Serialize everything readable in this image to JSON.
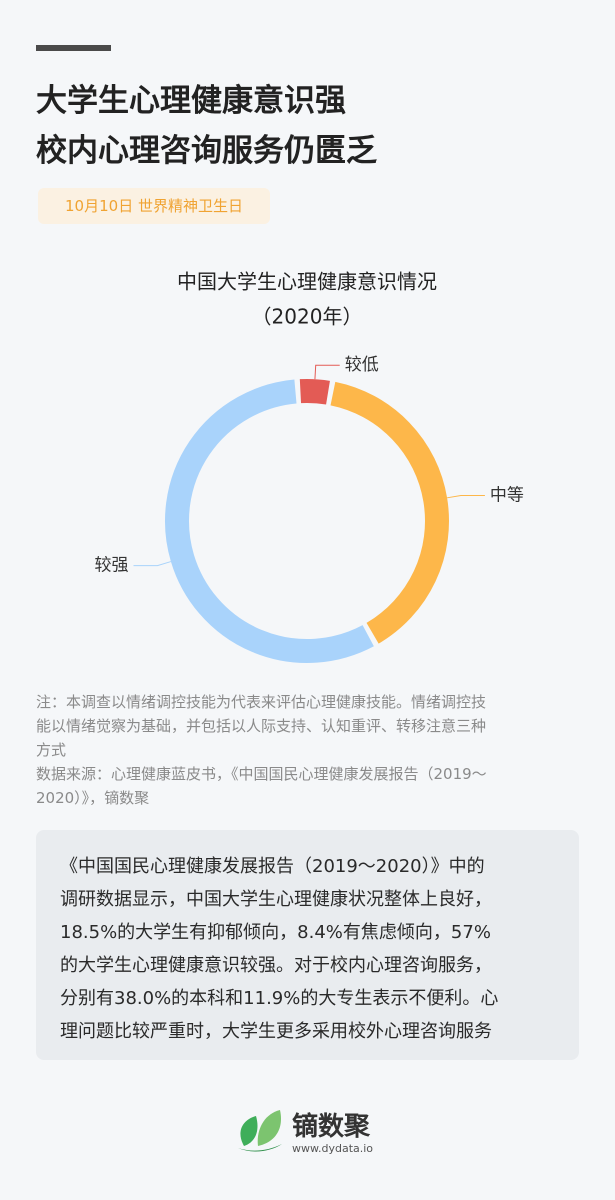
{
  "header": {
    "title_lines": [
      "大学生心理健康意识强",
      "校内心理咨询服务仍匮乏"
    ],
    "tag": "10月10日 世界精神卫生日"
  },
  "chart_data": {
    "type": "pie",
    "donut": true,
    "title_lines": [
      "中国大学生心理健康意识情况",
      "（2020年）"
    ],
    "categories": [
      "较低",
      "中等",
      "较强"
    ],
    "values": [
      4,
      39,
      57
    ],
    "colors": [
      "#e35b55",
      "#fdb74a",
      "#a9d3fb"
    ]
  },
  "notes": [
    "注：本调查以情绪调控技能为代表来评估心理健康技能。情绪调控技",
    "能以情绪觉察为基础，并包括以人际支持、认知重评、转移注意三种",
    "方式",
    "数据来源：心理健康蓝皮书，《中国国民心理健康发展报告（2019～",
    "2020）》，镝数聚"
  ],
  "summary": [
    "《中国国民心理健康发展报告（2019～2020）》中的",
    "调研数据显示，中国大学生心理健康状况整体上良好，",
    "18.5%的大学生有抑郁倾向，8.4%有焦虑倾向，57%",
    "的大学生心理健康意识较强。对于校内心理咨询服务，",
    "分别有38.0%的本科和11.9%的大专生表示不便利。心",
    "理问题比较严重时，大学生更多采用校外心理咨询服务"
  ],
  "footer": {
    "brand": "镝数聚",
    "url": "www.dydata.io"
  }
}
